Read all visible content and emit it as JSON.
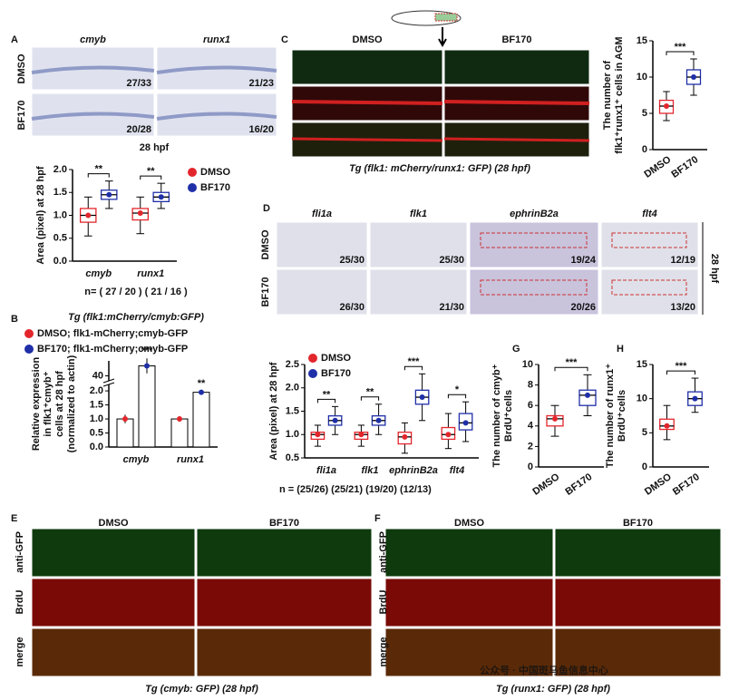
{
  "figure": {
    "watermark": "公众号 · 中国斑马鱼信息中心",
    "panel_A": {
      "letter": "A",
      "columns": [
        "cmyb",
        "runx1"
      ],
      "rows": [
        "DMSO",
        "BF170"
      ],
      "counts": [
        "27/33",
        "21/23",
        "20/28",
        "16/20"
      ],
      "stage": "28 hpf"
    },
    "panel_C": {
      "letter": "C",
      "columns": [
        "DMSO",
        "BF170"
      ],
      "caption": "Tg (flk1: mCherry/runx1: GFP) (28 hpf)"
    },
    "panel_D": {
      "letter": "D",
      "columns": [
        "fli1a",
        "flk1",
        "ephrinB2a",
        "flt4"
      ],
      "rows": [
        "DMSO",
        "BF170"
      ],
      "counts": [
        "25/30",
        "25/30",
        "19/24",
        "12/19",
        "26/30",
        "21/30",
        "20/26",
        "13/20"
      ],
      "stage": "28 hpf"
    },
    "panel_E": {
      "letter": "E",
      "columns": [
        "DMSO",
        "BF170"
      ],
      "rows": [
        "anti-GFP",
        "BrdU",
        "merge"
      ],
      "caption": "Tg (cmyb: GFP) (28 hpf)"
    },
    "panel_F": {
      "letter": "F",
      "columns": [
        "DMSO",
        "BF170"
      ],
      "rows": [
        "anti-GFP",
        "BrdU",
        "merge"
      ],
      "caption": "Tg (runx1: GFP) (28 hpf)"
    }
  },
  "chart_data": [
    {
      "type": "box",
      "y_label": [
        "Area (pixel) at 28 hpf"
      ],
      "categories": [
        "cmyb",
        "runx1"
      ],
      "series": [
        {
          "name": "DMSO",
          "color": "#e3262c",
          "boxes": [
            [
              0.55,
              0.85,
              1.0,
              1.15,
              1.4
            ],
            [
              0.6,
              0.9,
              1.05,
              1.15,
              1.4
            ]
          ]
        },
        {
          "name": "BF170",
          "color": "#1f2fa8",
          "boxes": [
            [
              1.15,
              1.35,
              1.45,
              1.55,
              1.75
            ],
            [
              1.15,
              1.3,
              1.4,
              1.5,
              1.7
            ]
          ]
        }
      ],
      "ylim": [
        0,
        2
      ],
      "yticks": [
        {
          "value": 0,
          "label": "0.0"
        },
        {
          "value": 0.5,
          "label": "0.5"
        },
        {
          "value": 1,
          "label": "1.0"
        },
        {
          "value": 1.5,
          "label": "1.5"
        },
        {
          "value": 2,
          "label": "2.0"
        }
      ],
      "significance": [
        "**",
        "**"
      ],
      "note": "n= ( 27 / 20 ) ( 21 / 16 )"
    },
    {
      "type": "bar",
      "letter": "B",
      "title": "Tg (flk1:mCherry/cmyb:GFP)",
      "y_label": [
        "Relative expression",
        "in flk1⁺cmyb⁺",
        "cells at 28 hpf",
        "(normalized to actin)"
      ],
      "categories": [
        "cmyb",
        "runx1"
      ],
      "series": [
        {
          "name": "DMSO; flk1-mCherry;cmyb-GFP",
          "color": "#e3262c",
          "values": [
            1.0,
            1.0
          ],
          "errors": [
            0.15,
            0.1
          ]
        },
        {
          "name": "BF170; flk1-mCherry;cmyb-GFP",
          "color": "#1f2fa8",
          "values": [
            44,
            1.95
          ],
          "errors": [
            3,
            0.05
          ]
        }
      ],
      "ylim": [
        0,
        46
      ],
      "axis_break": [
        2.1,
        38
      ],
      "yticks": [
        {
          "value": 0,
          "label": "0.0"
        },
        {
          "value": 0.5,
          "label": "0.5"
        },
        {
          "value": 1,
          "label": "1.0"
        },
        {
          "value": 1.5,
          "label": "1.5"
        },
        {
          "value": 2,
          "label": "2.0"
        },
        40
      ],
      "significance": [
        "***",
        "**"
      ]
    },
    {
      "type": "box",
      "y_label": [
        "The number of",
        "flk1⁺runx1⁺ cells in AGM"
      ],
      "categories": [
        "DMSO",
        "BF170"
      ],
      "colors": [
        "#e3262c",
        "#1f2fa8"
      ],
      "boxes": [
        [
          4,
          5,
          6,
          6.8,
          8
        ],
        [
          7.5,
          9,
          10,
          11,
          12.5
        ]
      ],
      "ylim": [
        0,
        15
      ],
      "yticks": [
        0,
        5,
        10,
        15
      ],
      "significance": "***"
    },
    {
      "type": "box",
      "y_label": [
        "Area (pixel) at 28 hpf"
      ],
      "categories": [
        "fli1a",
        "flk1",
        "ephrinB2a",
        "flt4"
      ],
      "series": [
        {
          "name": "DMSO",
          "color": "#e3262c",
          "boxes": [
            [
              0.75,
              0.9,
              1.0,
              1.05,
              1.2
            ],
            [
              0.75,
              0.9,
              1.0,
              1.05,
              1.2
            ],
            [
              0.6,
              0.8,
              0.95,
              1.05,
              1.25
            ],
            [
              0.7,
              0.9,
              1.0,
              1.15,
              1.45
            ]
          ]
        },
        {
          "name": "BF170",
          "color": "#1f2fa8",
          "boxes": [
            [
              1.0,
              1.2,
              1.3,
              1.4,
              1.6
            ],
            [
              1.0,
              1.2,
              1.3,
              1.4,
              1.65
            ],
            [
              1.3,
              1.65,
              1.8,
              1.95,
              2.3
            ],
            [
              0.85,
              1.1,
              1.25,
              1.45,
              1.7
            ]
          ]
        }
      ],
      "ylim": [
        0.5,
        2.5
      ],
      "yticks": [
        0.5,
        {
          "value": 1,
          "label": "1.0"
        },
        1.5,
        {
          "value": 2,
          "label": "2.0"
        },
        2.5
      ],
      "significance": [
        "**",
        "**",
        "***",
        "*"
      ],
      "note": "n = (25/26) (25/21) (19/20) (12/13)"
    },
    {
      "type": "box",
      "letter": "G",
      "y_label": [
        "The number of cmyb⁺",
        "BrdU⁺cells"
      ],
      "categories": [
        "DMSO",
        "BF170"
      ],
      "colors": [
        "#e3262c",
        "#1f2fa8"
      ],
      "boxes": [
        [
          3,
          4,
          4.7,
          5,
          6
        ],
        [
          5,
          6,
          7,
          7.5,
          9
        ]
      ],
      "ylim": [
        0,
        10
      ],
      "yticks": [
        0,
        2,
        4,
        6,
        8,
        10
      ],
      "significance": "***"
    },
    {
      "type": "box",
      "letter": "H",
      "y_label": [
        "The number of runx1⁺",
        "BrdU⁺cells"
      ],
      "categories": [
        "DMSO",
        "BF170"
      ],
      "colors": [
        "#e3262c",
        "#1f2fa8"
      ],
      "boxes": [
        [
          4,
          5.5,
          6,
          7,
          9
        ],
        [
          8,
          9,
          10,
          11,
          13
        ]
      ],
      "ylim": [
        0,
        15
      ],
      "yticks": [
        0,
        5,
        10,
        15
      ],
      "significance": "***"
    }
  ]
}
